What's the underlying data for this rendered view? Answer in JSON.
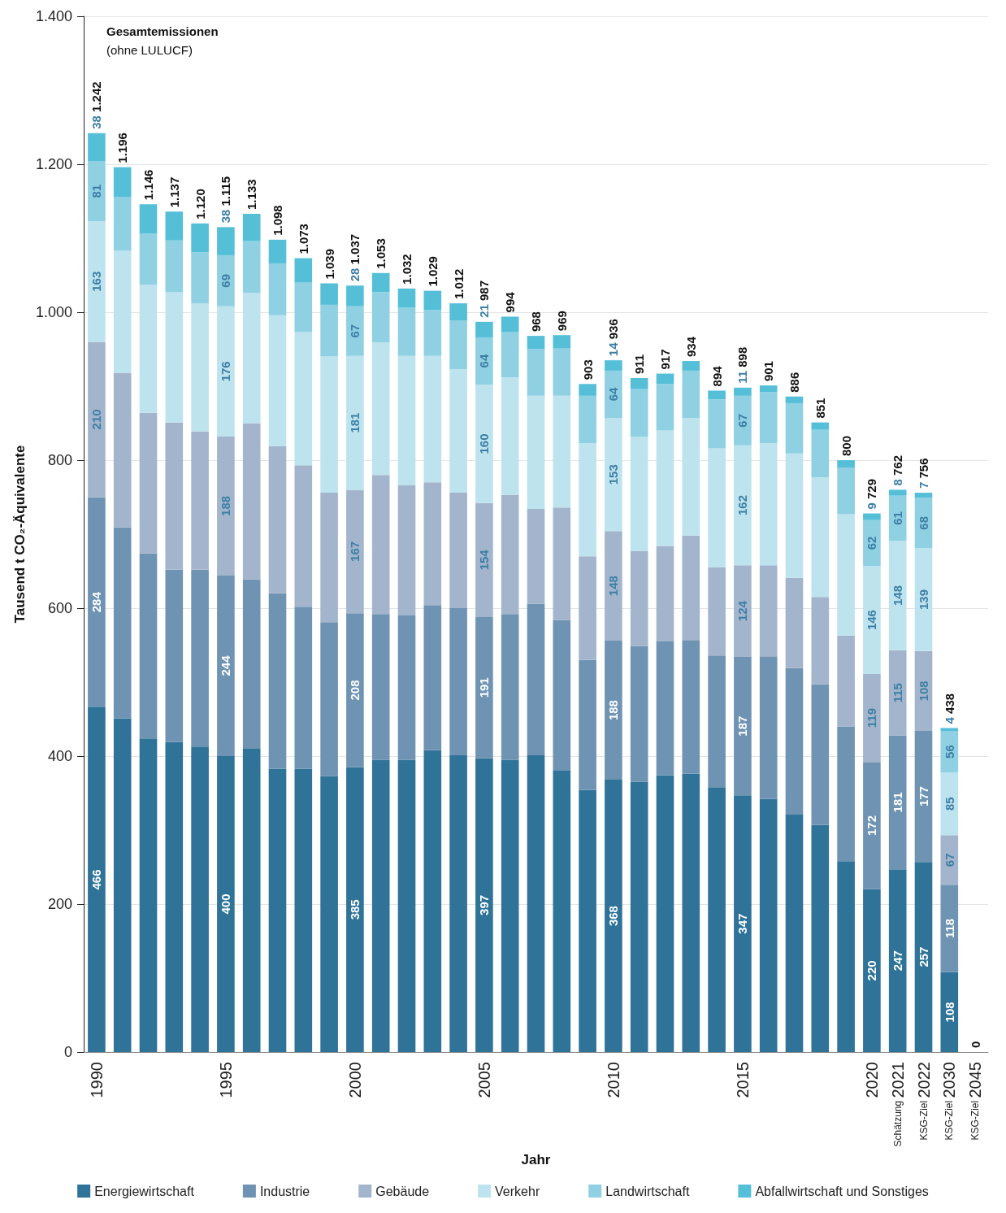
{
  "chart_data": {
    "type": "bar",
    "stacked": true,
    "title": "Gesamtemissionen",
    "subtitle": "(ohne LULUCF)",
    "xlabel": "Jahr",
    "ylabel": "Tausend t CO₂-Äquivalente",
    "categories": [
      "1990",
      null,
      null,
      null,
      null,
      "1995",
      null,
      null,
      null,
      null,
      "2000",
      null,
      null,
      null,
      null,
      "2005",
      null,
      null,
      null,
      null,
      "2010",
      null,
      null,
      null,
      null,
      "2015",
      null,
      null,
      null,
      null,
      "2020",
      "2021",
      "2022",
      "2030",
      "2045"
    ],
    "annotations": [
      "Schätzung",
      "KSG-Ziel",
      "KSG-Ziel",
      "KSG-Ziel"
    ],
    "series": [
      {
        "name": "Energiewirtschaft",
        "color": "#2f7399",
        "values": [
          466,
          451,
          424,
          419,
          413,
          400,
          410,
          383,
          383,
          373,
          385,
          395,
          395,
          408,
          401,
          397,
          395,
          401,
          381,
          354,
          368,
          365,
          374,
          376,
          358,
          347,
          342,
          321,
          307,
          258,
          220,
          247,
          257,
          108,
          0
        ],
        "value_labels": [
          "466",
          null,
          null,
          null,
          null,
          "400",
          null,
          null,
          null,
          null,
          "385",
          null,
          null,
          null,
          null,
          "397",
          null,
          null,
          null,
          null,
          "368",
          null,
          null,
          null,
          null,
          "347",
          null,
          null,
          null,
          null,
          "220",
          "247",
          "257",
          "108",
          null
        ]
      },
      {
        "name": "Industrie",
        "color": "#6f94b3",
        "values": [
          284,
          258,
          250,
          233,
          239,
          244,
          229,
          237,
          219,
          208,
          208,
          197,
          195,
          196,
          199,
          191,
          197,
          205,
          203,
          176,
          188,
          184,
          181,
          181,
          178,
          187,
          193,
          198,
          190,
          182,
          172,
          181,
          177,
          118,
          0
        ],
        "value_labels": [
          "284",
          null,
          null,
          null,
          null,
          "244",
          null,
          null,
          null,
          null,
          "208",
          null,
          null,
          null,
          null,
          "191",
          null,
          null,
          null,
          null,
          "188",
          null,
          null,
          null,
          null,
          "187",
          null,
          null,
          null,
          null,
          "172",
          "181",
          "177",
          "118",
          null
        ]
      },
      {
        "name": "Gebäude",
        "color": "#a3b5cc",
        "values": [
          210,
          209,
          190,
          199,
          187,
          188,
          211,
          199,
          191,
          175,
          167,
          188,
          176,
          166,
          156,
          154,
          161,
          128,
          152,
          140,
          148,
          128,
          129,
          141,
          119,
          124,
          123,
          122,
          118,
          123,
          119,
          115,
          108,
          67,
          0
        ],
        "value_labels": [
          "210",
          null,
          null,
          null,
          null,
          "188",
          null,
          null,
          null,
          null,
          "167",
          null,
          null,
          null,
          null,
          "154",
          null,
          null,
          null,
          null,
          "148",
          null,
          null,
          null,
          null,
          "124",
          null,
          null,
          null,
          null,
          "119",
          "115",
          "108",
          "67",
          null
        ]
      },
      {
        "name": "Verkehr",
        "color": "#bde3ef",
        "values": [
          163,
          165,
          173,
          176,
          173,
          176,
          176,
          177,
          180,
          184,
          181,
          179,
          175,
          171,
          167,
          160,
          159,
          153,
          151,
          153,
          153,
          155,
          156,
          159,
          161,
          162,
          165,
          168,
          162,
          164,
          146,
          148,
          139,
          85,
          0
        ],
        "value_labels": [
          "163",
          null,
          null,
          null,
          null,
          "176",
          null,
          null,
          null,
          null,
          "181",
          null,
          null,
          null,
          null,
          "160",
          null,
          null,
          null,
          null,
          "153",
          null,
          null,
          null,
          null,
          "162",
          null,
          null,
          null,
          null,
          "146",
          "148",
          "139",
          "85",
          null
        ]
      },
      {
        "name": "Landwirtschaft",
        "color": "#8fd0e2",
        "values": [
          81,
          73,
          69,
          70,
          69,
          69,
          70,
          70,
          67,
          70,
          67,
          68,
          65,
          62,
          66,
          64,
          61,
          63,
          64,
          64,
          64,
          64,
          63,
          64,
          66,
          67,
          69,
          68,
          64,
          63,
          62,
          61,
          68,
          56,
          0
        ],
        "value_labels": [
          "81",
          null,
          null,
          null,
          null,
          "69",
          null,
          null,
          null,
          null,
          "67",
          null,
          null,
          null,
          null,
          "64",
          null,
          null,
          null,
          null,
          "64",
          null,
          null,
          null,
          null,
          "67",
          null,
          null,
          null,
          null,
          "62",
          "61",
          "68",
          "56",
          null
        ]
      },
      {
        "name": "Abfallwirtschaft und Sonstiges",
        "color": "#55bfd8",
        "values": [
          38,
          40,
          40,
          39,
          39,
          38,
          37,
          32,
          33,
          29,
          28,
          26,
          26,
          26,
          23,
          21,
          21,
          18,
          18,
          16,
          14,
          15,
          14,
          13,
          12,
          11,
          9,
          9,
          10,
          10,
          9,
          8,
          7,
          4,
          0
        ],
        "value_labels": [
          "38",
          null,
          null,
          null,
          null,
          "38",
          null,
          null,
          null,
          null,
          "28",
          null,
          null,
          null,
          null,
          "21",
          null,
          null,
          null,
          null,
          "14",
          null,
          null,
          null,
          null,
          "11",
          null,
          null,
          null,
          null,
          "9",
          "8",
          "7",
          "4",
          null
        ]
      }
    ],
    "totals": [
      "1.242",
      "1.196",
      "1.146",
      "1.137",
      "1.120",
      "1.115",
      "1.133",
      "1.098",
      "1.073",
      "1.039",
      "1.037",
      "1.053",
      "1.032",
      "1.029",
      "1.012",
      "987",
      "994",
      "968",
      "969",
      "903",
      "936",
      "911",
      "917",
      "934",
      "894",
      "898",
      "901",
      "886",
      "851",
      "800",
      "729",
      "762",
      "756",
      "438",
      "0"
    ],
    "ylim": [
      0,
      1400
    ],
    "yticks": [
      0,
      {
        "value": 200,
        "label": "200"
      },
      {
        "value": 400,
        "label": "400"
      },
      {
        "value": 600,
        "label": "600"
      },
      {
        "value": 800,
        "label": "800"
      },
      {
        "value": 1000,
        "label": "1.000"
      },
      {
        "value": 1200,
        "label": "1.200"
      },
      {
        "value": 1400,
        "label": "1.400"
      }
    ],
    "grid": "y",
    "legend": "bottom"
  }
}
